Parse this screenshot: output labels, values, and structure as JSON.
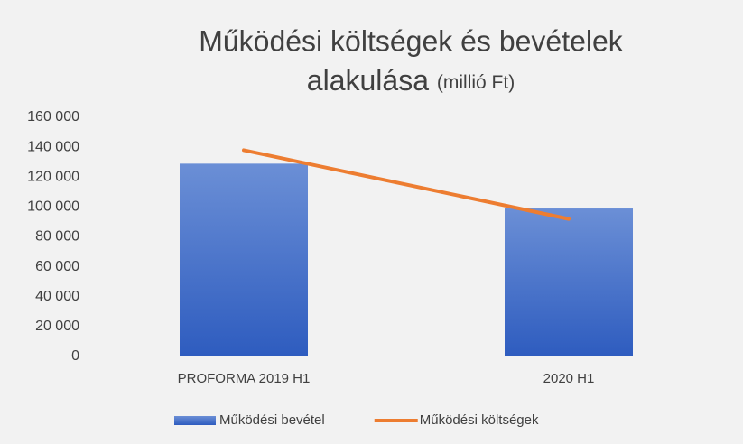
{
  "chart_data": {
    "type": "bar",
    "title": [
      "Működési költségek és bevételek",
      "alakulása"
    ],
    "subtitle": "(millió Ft)",
    "categories": [
      "PROFORMA 2019 H1",
      "2020 H1"
    ],
    "series": [
      {
        "name": "Működési bevétel",
        "type": "bar",
        "color": "#4472c4",
        "values": [
          129000,
          99000
        ]
      },
      {
        "name": "Működési költségek",
        "type": "line",
        "color": "#ed7d31",
        "values": [
          138000,
          92000
        ]
      }
    ],
    "ylim": [
      0,
      160000
    ],
    "yticks": [
      0,
      {
        "value": 20000,
        "label": "20 000"
      },
      {
        "value": 40000,
        "label": "40 000"
      },
      {
        "value": 60000,
        "label": "60 000"
      },
      {
        "value": 80000,
        "label": "80 000"
      },
      {
        "value": 100000,
        "label": "100 000"
      },
      {
        "value": 120000,
        "label": "120 000"
      },
      {
        "value": 140000,
        "label": "140 000"
      },
      {
        "value": 160000,
        "label": "160 000"
      }
    ],
    "grid": false,
    "legend": "bottom"
  }
}
